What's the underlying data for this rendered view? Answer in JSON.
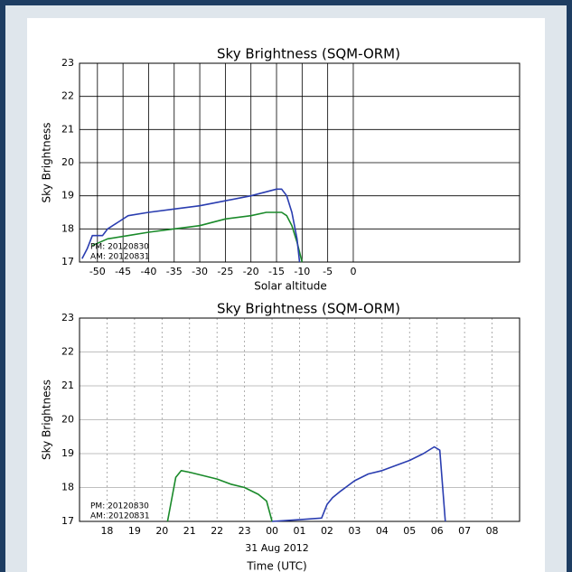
{
  "chart_data": [
    {
      "type": "line",
      "title": "Sky Brightness (SQM-ORM)",
      "ylabel": "Sky Brightness",
      "xlabel": "Solar altitude",
      "xlim": [
        -53.5,
        32.5
      ],
      "ylim": [
        17,
        23
      ],
      "xticks": [
        -50,
        -45,
        -40,
        -35,
        -30,
        -25,
        -20,
        -15,
        -10,
        -5,
        0
      ],
      "yticks": [
        17,
        18,
        19,
        20,
        21,
        22,
        23
      ],
      "grid": "solid",
      "legend": "lower left",
      "series": [
        {
          "name": "PM: 20120830",
          "color": "#1a8a2a",
          "x": [
            -51,
            -48,
            -44,
            -40,
            -35,
            -30,
            -25,
            -20,
            -17,
            -14,
            -13,
            -12,
            -11,
            -10
          ],
          "values": [
            17.5,
            17.7,
            17.8,
            17.9,
            18.0,
            18.1,
            18.3,
            18.4,
            18.5,
            18.5,
            18.4,
            18.1,
            17.6,
            17.0
          ]
        },
        {
          "name": "AM: 20120831",
          "color": "#2a3db0",
          "x": [
            -53,
            -52,
            -51,
            -49,
            -48,
            -46,
            -44,
            -40,
            -35,
            -30,
            -25,
            -20,
            -15,
            -14,
            -13,
            -12,
            -11,
            -10.5
          ],
          "values": [
            17.1,
            17.4,
            17.8,
            17.8,
            18.0,
            18.2,
            18.4,
            18.5,
            18.6,
            18.7,
            18.85,
            19.0,
            19.2,
            19.2,
            19.0,
            18.5,
            17.7,
            17.0
          ]
        }
      ]
    },
    {
      "type": "line",
      "title": "Sky Brightness (SQM-ORM)",
      "ylabel": "Sky Brightness",
      "xlabel": "Time (UTC)",
      "xlabel_date": "31 Aug 2012",
      "xlim": [
        17,
        33
      ],
      "ylim": [
        17,
        23
      ],
      "xticks": [
        18,
        19,
        20,
        21,
        22,
        23,
        {
          "value": 24,
          "label": "00"
        },
        {
          "value": 25,
          "label": "01"
        },
        {
          "value": 26,
          "label": "02"
        },
        {
          "value": 27,
          "label": "03"
        },
        {
          "value": 28,
          "label": "04"
        },
        {
          "value": 29,
          "label": "05"
        },
        {
          "value": 30,
          "label": "06"
        },
        {
          "value": 31,
          "label": "07"
        },
        {
          "value": 32,
          "label": "08"
        }
      ],
      "yticks": [
        17,
        18,
        19,
        20,
        21,
        22,
        23
      ],
      "grid": "dashed",
      "legend": "lower left",
      "series": [
        {
          "name": "PM: 20120830",
          "color": "#1a8a2a",
          "x": [
            20.2,
            20.5,
            20.7,
            21.0,
            21.5,
            22.0,
            22.5,
            23.0,
            23.5,
            23.8,
            24.0
          ],
          "values": [
            17.0,
            18.3,
            18.5,
            18.45,
            18.35,
            18.25,
            18.1,
            18.0,
            17.8,
            17.6,
            17.0
          ]
        },
        {
          "name": "AM: 20120831",
          "color": "#2a3db0",
          "x": [
            24.0,
            25.0,
            25.8,
            26.0,
            26.2,
            26.5,
            27.0,
            27.5,
            28.0,
            28.5,
            29.0,
            29.5,
            29.9,
            30.1,
            30.3
          ],
          "values": [
            17.0,
            17.05,
            17.1,
            17.5,
            17.7,
            17.9,
            18.2,
            18.4,
            18.5,
            18.65,
            18.8,
            19.0,
            19.2,
            19.1,
            17.0
          ]
        }
      ]
    }
  ]
}
